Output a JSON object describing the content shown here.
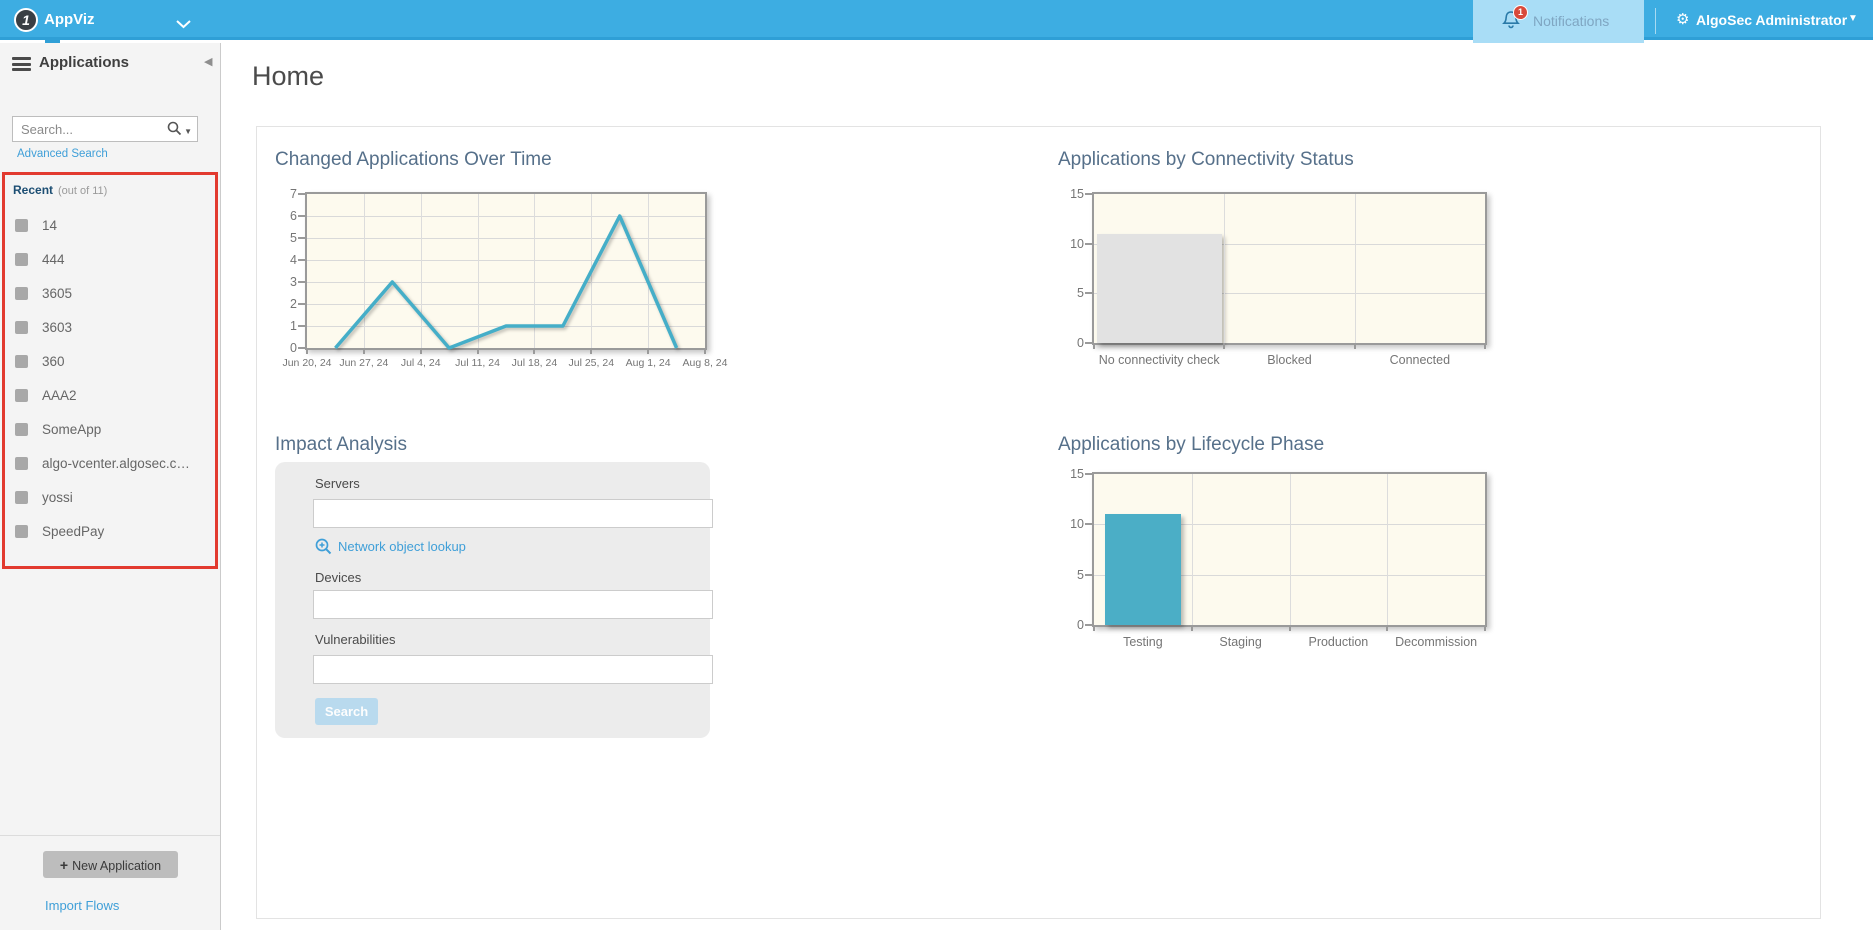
{
  "header": {
    "app_name": "AppViz",
    "notifications_label": "Notifications",
    "notifications_badge": "1",
    "user_menu_label": "AlgoSec Administrator",
    "colors": {
      "bar": "#3dade2",
      "active_tab": "#a9ddf6",
      "badge": "#d84a3b"
    }
  },
  "sidebar": {
    "title": "Applications",
    "search_placeholder": "Search...",
    "advanced_search_label": "Advanced Search",
    "recent_label": "Recent",
    "recent_count": "(out of 11)",
    "items": [
      "14",
      "444",
      "3605",
      "3603",
      "360",
      "AAA2",
      "SomeApp",
      "algo-vcenter.algosec.c…",
      "yossi",
      "SpeedPay"
    ],
    "new_app_plus": "+",
    "new_app_label": "New Application",
    "import_flows_label": "Import Flows"
  },
  "main": {
    "page_title": "Home"
  },
  "impact_analysis": {
    "title": "Impact Analysis",
    "servers_label": "Servers",
    "network_object_lookup_label": "Network object lookup",
    "devices_label": "Devices",
    "vulnerabilities_label": "Vulnerabilities",
    "search_button_label": "Search"
  },
  "annotation": {
    "shape": "red-rectangle-highlight",
    "color": "#e23a2f"
  },
  "chart_data": [
    {
      "type": "line",
      "title": "Changed Applications Over Time",
      "x_tick_labels": [
        "Jun 20, 24",
        "Jun 27, 24",
        "Jul 4, 24",
        "Jul 11, 24",
        "Jul 18, 24",
        "Jul 25, 24",
        "Aug 1, 24",
        "Aug 8, 24"
      ],
      "point_alignment": "between_ticks",
      "values": [
        0,
        3,
        0,
        1,
        1,
        6,
        0
      ],
      "ylim": [
        0,
        7
      ],
      "y_ticks": [
        0,
        1,
        2,
        3,
        4,
        5,
        6,
        7
      ],
      "grid": true,
      "legend": "none",
      "line_color": "#45aec8",
      "plot_bg": "#fdfaee"
    },
    {
      "type": "bar",
      "title": "Applications by Connectivity Status",
      "categories": [
        "No connectivity check",
        "Blocked",
        "Connected"
      ],
      "values": [
        11,
        0,
        0
      ],
      "ylim": [
        0,
        15
      ],
      "y_ticks": [
        0,
        5,
        10,
        15
      ],
      "grid": true,
      "legend": "none",
      "bar_color": "#e2e2e2",
      "bar_width_frac": 0.96,
      "plot_bg": "#fdfaee"
    },
    {
      "type": "bar",
      "title": "Applications by Lifecycle Phase",
      "categories": [
        "Testing",
        "Staging",
        "Production",
        "Decommission"
      ],
      "values": [
        11,
        0,
        0,
        0
      ],
      "ylim": [
        0,
        15
      ],
      "y_ticks": [
        0,
        5,
        10,
        15
      ],
      "grid": true,
      "legend": "none",
      "bar_color": "#4baec6",
      "bar_width_frac": 0.78,
      "plot_bg": "#fdfaee"
    }
  ]
}
